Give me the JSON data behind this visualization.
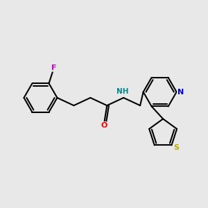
{
  "bg_color": "#e8e8e8",
  "bond_color": "#000000",
  "atom_colors": {
    "F": "#cc00cc",
    "O": "#ff0000",
    "N": "#0000cc",
    "NH_color": "#008888",
    "S": "#bbaa00"
  },
  "fig_width": 3.0,
  "fig_height": 3.0,
  "dpi": 100,
  "bond_lw": 1.5
}
